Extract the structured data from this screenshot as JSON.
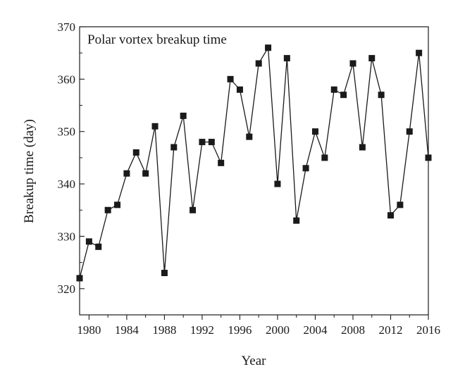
{
  "chart_data": {
    "type": "line",
    "title": "Polar vortex breakup time",
    "xlabel": "Year",
    "ylabel": "Breakup time (day)",
    "xlim": [
      1979,
      2016
    ],
    "ylim": [
      315,
      370
    ],
    "x_ticks": [
      1980,
      1984,
      1988,
      1992,
      1996,
      2000,
      2004,
      2008,
      2012,
      2016
    ],
    "y_ticks": [
      320,
      330,
      340,
      350,
      360,
      370
    ],
    "grid": false,
    "legend": "none",
    "marker": "square",
    "line_color": "#1a1a1a",
    "marker_color": "#1a1a1a",
    "x": [
      1979,
      1980,
      1981,
      1982,
      1983,
      1984,
      1985,
      1986,
      1987,
      1988,
      1989,
      1990,
      1991,
      1992,
      1993,
      1994,
      1995,
      1996,
      1997,
      1998,
      1999,
      2000,
      2001,
      2002,
      2003,
      2004,
      2005,
      2006,
      2007,
      2008,
      2009,
      2010,
      2011,
      2012,
      2013,
      2014,
      2015,
      2016
    ],
    "values": [
      322,
      329,
      328,
      335,
      336,
      342,
      346,
      342,
      351,
      323,
      347,
      353,
      335,
      348,
      348,
      344,
      360,
      358,
      349,
      363,
      366,
      340,
      364,
      333,
      343,
      350,
      345,
      358,
      357,
      363,
      347,
      364,
      357,
      334,
      336,
      350,
      365,
      345
    ]
  }
}
